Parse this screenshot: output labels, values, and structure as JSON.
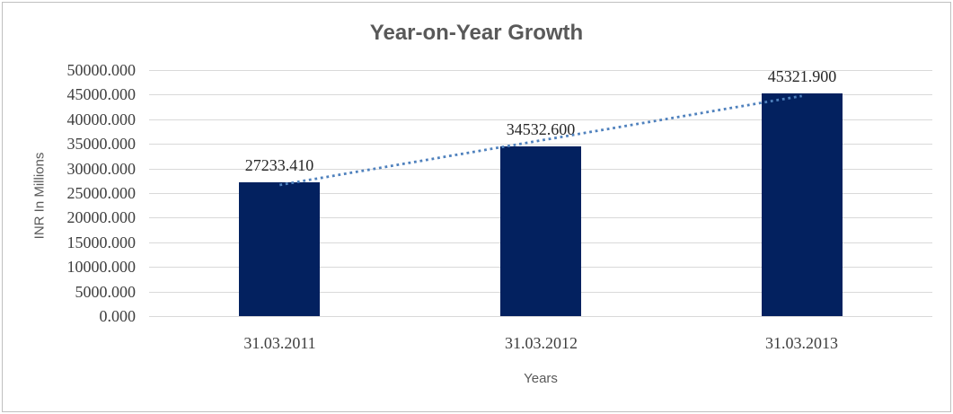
{
  "window": {
    "background": "#ffffff",
    "border_color": "#c0c0c0"
  },
  "chart_data": {
    "type": "bar",
    "title": "Year-on-Year Growth",
    "xlabel": "Years",
    "ylabel": "INR In Millions",
    "categories": [
      "31.03.2011",
      "31.03.2012",
      "31.03.2013"
    ],
    "values": [
      27233.41,
      34532.6,
      45321.9
    ],
    "data_labels": [
      "27233.410",
      "34532.600",
      "45321.900"
    ],
    "ylim": [
      0,
      50000
    ],
    "ytick_step": 5000,
    "ytick_labels_top_down": [
      "50000.000",
      "45000.000",
      "40000.000",
      "35000.000",
      "30000.000",
      "25000.000",
      "20000.000",
      "15000.000",
      "10000.000",
      "5000.000",
      "0.000"
    ],
    "grid": true,
    "legend": "none",
    "bar_color": "#03215f",
    "gridline_color": "#d9d9d9",
    "trendline": {
      "type": "linear",
      "style": "dotted",
      "color": "#4f81bd"
    },
    "title_color": "#595959",
    "axis_title_color": "#595959",
    "tick_label_color": "#3f3f3f",
    "data_label_color": "#262626"
  }
}
